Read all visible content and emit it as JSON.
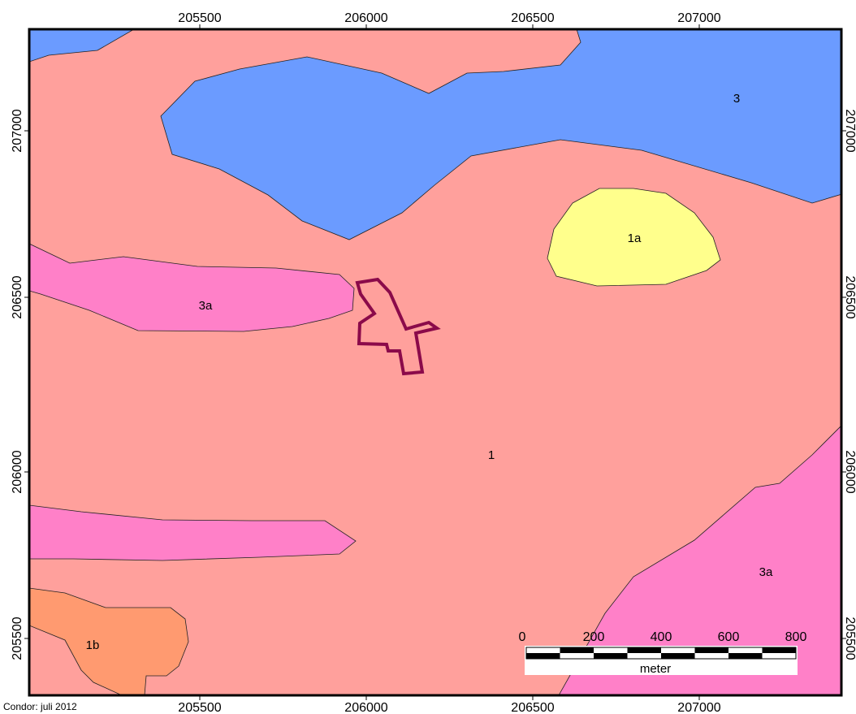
{
  "map": {
    "colors": {
      "unit_1": "#FFA09C",
      "unit_1a": "#FFFF8C",
      "unit_1b": "#FF9A70",
      "unit_3": "#6B9BFF",
      "unit_3a": "#FF80C8",
      "site_outline": "#8B0A4A"
    },
    "unit_labels": {
      "unit_3": "3",
      "unit_1a": "1a",
      "unit_3a_west": "3a",
      "unit_1": "1",
      "unit_3a_southeast": "3a",
      "unit_1b": "1b"
    },
    "x_ticks_top": [
      "205500",
      "206000",
      "206500",
      "207000"
    ],
    "x_ticks_bottom": [
      "205500",
      "206000",
      "206500",
      "207000"
    ],
    "y_ticks_left": [
      "207000",
      "206500",
      "206000",
      "205500"
    ],
    "y_ticks_right": [
      "207000",
      "206500",
      "206000",
      "205500"
    ],
    "credit": "Condor: juli 2012",
    "scale_bar": {
      "labels": [
        "0",
        "200",
        "400",
        "600",
        "800"
      ],
      "unit": "meter"
    }
  }
}
